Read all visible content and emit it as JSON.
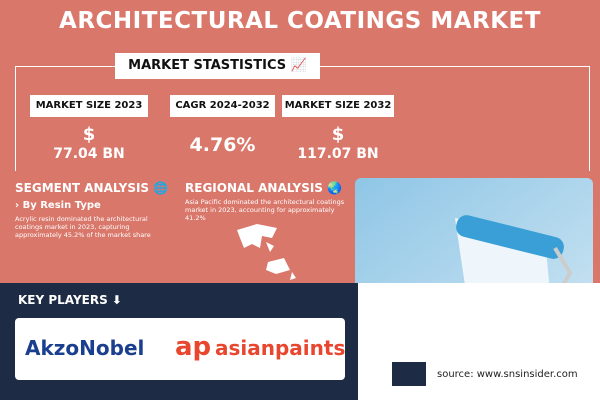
{
  "title": "ARCHITECTURAL COATINGS MARKET",
  "statistics": {
    "heading": "MARKET STASTISTICS",
    "items": [
      {
        "label": "MARKET SIZE 2023",
        "symbol": "$",
        "value": "77.04 BN"
      },
      {
        "label": "CAGR 2024-2032",
        "value": "4.76%"
      },
      {
        "label": "MARKET SIZE 2032",
        "symbol": "$",
        "value": "117.07 BN"
      }
    ]
  },
  "segment": {
    "heading": "SEGMENT ANALYSIS",
    "subheading": "› By Resin Type",
    "text": "Acrylic resin dominated the architectural coatings market in 2023, capturing approximately 45.2% of the market share"
  },
  "regional": {
    "heading": "REGIONAL ANALYSIS",
    "text": "Asia Pacific dominated the architectural coatings market in 2023, accounting for approximately 41.2%"
  },
  "key_players": {
    "heading": "KEY PLAYERS",
    "logos": [
      "AkzoNobel",
      "asianpaints"
    ]
  },
  "source": "source: www.snsinsider.com"
}
